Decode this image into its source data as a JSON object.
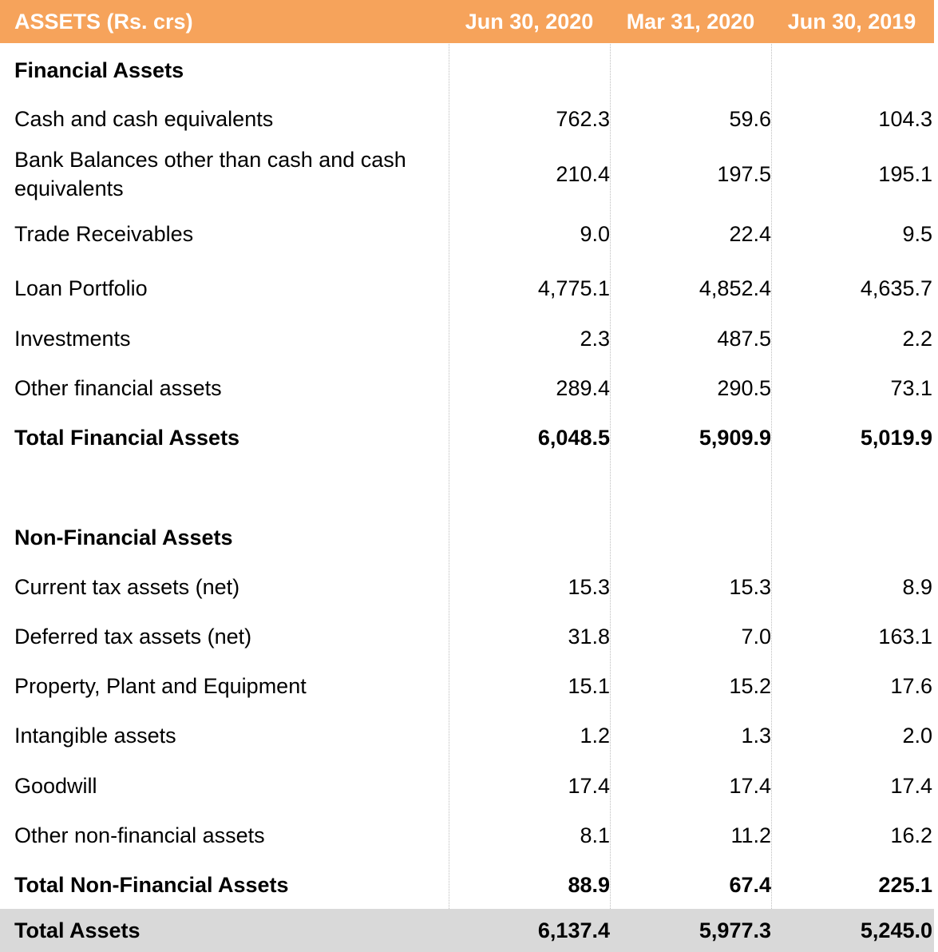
{
  "header": {
    "title": "ASSETS (Rs. crs)",
    "periods": [
      "Jun 30, 2020",
      "Mar 31, 2020",
      "Jun 30, 2019"
    ]
  },
  "rows": [
    {
      "label": "Financial Assets",
      "values": [],
      "bold": true
    },
    {
      "label": "Cash and cash equivalents",
      "values": [
        "762.3",
        "59.6",
        "104.3"
      ]
    },
    {
      "label": "Bank Balances other than cash and cash equivalents",
      "values": [
        "210.4",
        "197.5",
        "195.1"
      ]
    },
    {
      "label": "Trade Receivables",
      "values": [
        "9.0",
        "22.4",
        "9.5"
      ]
    },
    {
      "label": "Loan Portfolio",
      "values": [
        "4,775.1",
        "4,852.4",
        "4,635.7"
      ]
    },
    {
      "label": "Investments",
      "values": [
        "2.3",
        "487.5",
        "2.2"
      ]
    },
    {
      "label": "Other financial assets",
      "values": [
        "289.4",
        "290.5",
        "73.1"
      ]
    },
    {
      "label": "Total Financial Assets",
      "values": [
        "6,048.5",
        "5,909.9",
        "5,019.9"
      ],
      "bold": true
    },
    {
      "label": "Non-Financial Assets",
      "values": [],
      "bold": true
    },
    {
      "label": "Current tax assets (net)",
      "values": [
        "15.3",
        "15.3",
        "8.9"
      ]
    },
    {
      "label": "Deferred tax assets (net)",
      "values": [
        "31.8",
        "7.0",
        "163.1"
      ]
    },
    {
      "label": "Property, Plant and Equipment",
      "values": [
        "15.1",
        "15.2",
        "17.6"
      ]
    },
    {
      "label": "Intangible assets",
      "values": [
        "1.2",
        "1.3",
        "2.0"
      ]
    },
    {
      "label": "Goodwill",
      "values": [
        "17.4",
        "17.4",
        "17.4"
      ]
    },
    {
      "label": "Other non-financial assets",
      "values": [
        "8.1",
        "11.2",
        "16.2"
      ]
    },
    {
      "label": "Total Non-Financial Assets",
      "values": [
        "88.9",
        "67.4",
        "225.1"
      ],
      "bold": true
    },
    {
      "label": "Total Assets",
      "values": [
        "6,137.4",
        "5,977.3",
        "5,245.0"
      ],
      "bold": true
    }
  ],
  "colors": {
    "header_bg": "#f6a35b",
    "total_bg": "#d9d9d9"
  }
}
